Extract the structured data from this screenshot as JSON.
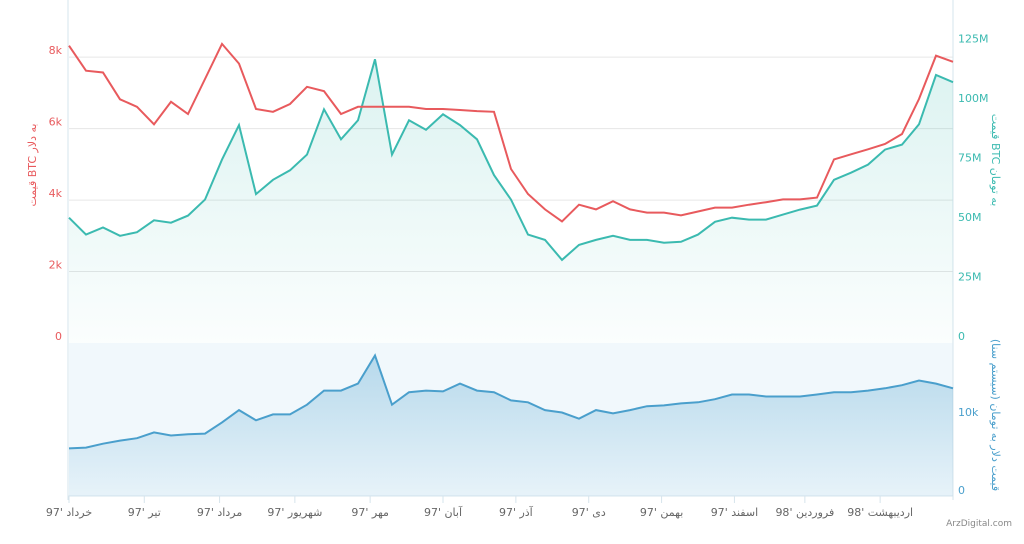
{
  "chart_data": [
    {
      "type": "line",
      "panel": "top",
      "ylabel_left": "قیمت BTC به دلار",
      "ylabel_right": "قیمت BTC به تومان",
      "ylim_left": [
        0,
        9600
      ],
      "ylim_right": [
        0,
        144
      ],
      "yticks_left": [
        "0",
        "2k",
        "4k",
        "6k",
        "8k"
      ],
      "ytick_values_left": [
        0,
        2000,
        4000,
        6000,
        8000
      ],
      "yticks_right": [
        "0",
        "25M",
        "50M",
        "75M",
        "100M",
        "125M"
      ],
      "ytick_values_right": [
        0,
        25,
        50,
        75,
        100,
        125
      ],
      "grid": true,
      "x": [
        "1397/03/01",
        "1397/03/08",
        "1397/03/15",
        "1397/03/22",
        "1397/03/29",
        "1397/04/05",
        "1397/04/12",
        "1397/04/19",
        "1397/04/26",
        "1397/05/02",
        "1397/05/09",
        "1397/05/16",
        "1397/05/23",
        "1397/05/30",
        "1397/06/06",
        "1397/06/13",
        "1397/06/20",
        "1397/06/27",
        "1397/07/03",
        "1397/07/10",
        "1397/07/17",
        "1397/07/24",
        "1397/08/01",
        "1397/08/08",
        "1397/08/15",
        "1397/08/22",
        "1397/08/29",
        "1397/09/06",
        "1397/09/13",
        "1397/09/20",
        "1397/09/27",
        "1397/10/04",
        "1397/10/11",
        "1397/10/18",
        "1397/10/25",
        "1397/11/02",
        "1397/11/09",
        "1397/11/16",
        "1397/11/23",
        "1397/11/30",
        "1397/12/07",
        "1397/12/14",
        "1397/12/21",
        "1397/12/28",
        "1398/01/06",
        "1398/01/13",
        "1398/01/20",
        "1398/01/27",
        "1398/02/03",
        "1398/02/10",
        "1398/02/17",
        "1398/02/24",
        "1398/02/31"
      ],
      "series": [
        {
          "axis": "left",
          "color": "#e85a5d",
          "values": [
            8320,
            7620,
            7570,
            6820,
            6610,
            6120,
            6750,
            6410,
            7390,
            8370,
            7820,
            6550,
            6470,
            6690,
            7170,
            7050,
            6410,
            6610,
            6610,
            6610,
            6610,
            6550,
            6550,
            6520,
            6490,
            6470,
            4870,
            4170,
            3740,
            3400,
            3870,
            3740,
            3970,
            3740,
            3650,
            3650,
            3570,
            3680,
            3790,
            3790,
            3870,
            3940,
            4020,
            4020,
            4070,
            5140,
            5280,
            5420,
            5570,
            5850,
            6830,
            8040,
            7870
          ]
        },
        {
          "axis": "right",
          "color": "#3bbab0",
          "values": [
            52.6,
            45.5,
            48.5,
            45,
            46.5,
            51.5,
            50.5,
            53.5,
            60.2,
            77,
            91.5,
            62.5,
            68.5,
            72.5,
            79.1,
            98.1,
            85.5,
            93.5,
            119.1,
            79.1,
            93.5,
            89.5,
            96,
            91.5,
            85.5,
            70.5,
            60.2,
            45.5,
            43.3,
            34.9,
            41.2,
            43.3,
            45,
            43.3,
            43.3,
            42.1,
            42.5,
            45.5,
            50.9,
            52.6,
            51.8,
            51.8,
            53.9,
            56,
            57.7,
            68.5,
            71.5,
            74.9,
            81.2,
            83.3,
            91.8,
            112.5,
            109.5
          ]
        }
      ]
    },
    {
      "type": "area",
      "panel": "bottom",
      "ylabel_right": "قیمت دلار به تومان (سیستم سنا)",
      "ylim": [
        0,
        19600
      ],
      "yticks_right": [
        "0",
        "10k"
      ],
      "ytick_values_right": [
        0,
        10000
      ],
      "series": [
        {
          "color": "#4a9fcc",
          "values": [
            6100,
            6200,
            6700,
            7100,
            7400,
            8150,
            7750,
            7900,
            8000,
            9430,
            11000,
            9700,
            10450,
            10450,
            11700,
            13500,
            13500,
            14400,
            18000,
            11700,
            13300,
            13500,
            13400,
            14400,
            13500,
            13300,
            12250,
            12000,
            11000,
            10700,
            9900,
            11000,
            10600,
            11000,
            11500,
            11600,
            11860,
            12000,
            12400,
            13000,
            13000,
            12750,
            12750,
            12750,
            13000,
            13300,
            13300,
            13500,
            13800,
            14200,
            14800,
            14400,
            13800
          ]
        }
      ]
    }
  ],
  "x_axis": {
    "ticks": [
      {
        "label": "خرداد '97",
        "date": "1397/03/01"
      },
      {
        "label": "تیر '97",
        "date": "1397/04/01"
      },
      {
        "label": "مرداد '97",
        "date": "1397/05/01"
      },
      {
        "label": "شهریور '97",
        "date": "1397/06/01"
      },
      {
        "label": "مهر '97",
        "date": "1397/07/01"
      },
      {
        "label": "آبان '97",
        "date": "1397/08/01"
      },
      {
        "label": "آذر '97",
        "date": "1397/09/01"
      },
      {
        "label": "دی '97",
        "date": "1397/10/01"
      },
      {
        "label": "بهمن '97",
        "date": "1397/11/01"
      },
      {
        "label": "اسفند '97",
        "date": "1397/12/01"
      },
      {
        "label": "فروردین '98",
        "date": "1398/01/01"
      },
      {
        "label": "اردیبهشت '98",
        "date": "1398/02/01"
      }
    ]
  },
  "watermark": "ArzDigital.com"
}
